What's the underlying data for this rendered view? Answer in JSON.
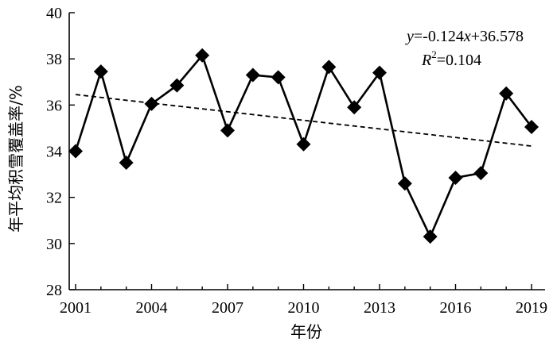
{
  "chart_data": {
    "type": "line",
    "title": "",
    "xlabel": "年份",
    "ylabel": "年平均积雪覆盖率/%",
    "x": [
      2001,
      2002,
      2003,
      2004,
      2005,
      2006,
      2007,
      2008,
      2009,
      2010,
      2011,
      2012,
      2013,
      2014,
      2015,
      2016,
      2017,
      2018,
      2019
    ],
    "series": [
      {
        "values": [
          34.0,
          37.45,
          33.5,
          36.05,
          36.85,
          38.15,
          34.9,
          37.3,
          37.2,
          34.3,
          37.65,
          35.9,
          37.4,
          32.6,
          30.3,
          32.85,
          33.05,
          36.5,
          35.05
        ],
        "marker": "diamond",
        "color": "#000000"
      }
    ],
    "trendline": {
      "style": "dashed",
      "slope": -0.124,
      "intercept": 36.578,
      "equation_prefix": "y",
      "equation_body": "=-0.124",
      "equation_var": "x",
      "equation_suffix": "+36.578",
      "r2_prefix": "R",
      "r2_sup": "2",
      "r2_value": "=0.104"
    },
    "xlim": [
      2001,
      2019
    ],
    "ylim": [
      28,
      40
    ],
    "x_ticks": [
      "2001",
      "2004",
      "2007",
      "2010",
      "2013",
      "2016",
      "2019"
    ],
    "y_ticks": [
      "28",
      "30",
      "32",
      "34",
      "36",
      "38",
      "40"
    ],
    "grid": false,
    "legend": "none"
  }
}
